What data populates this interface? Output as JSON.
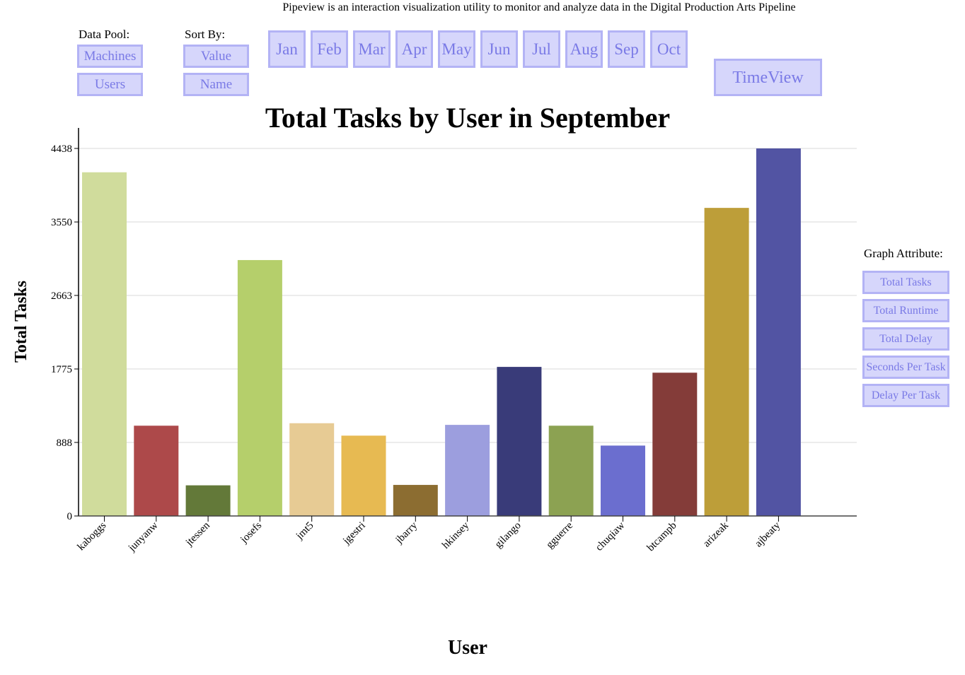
{
  "header": {
    "tagline": "Pipeview is an interaction visualization utility to monitor and analyze data in the Digital Production Arts Pipeline"
  },
  "controls": {
    "data_pool_label": "Data Pool:",
    "data_pool_options": [
      "Machines",
      "Users"
    ],
    "sort_label": "Sort By:",
    "sort_options": [
      "Value",
      "Name"
    ],
    "months": [
      "Jan",
      "Feb",
      "Mar",
      "Apr",
      "May",
      "Jun",
      "Jul",
      "Aug",
      "Sep",
      "Oct"
    ],
    "timeview_label": "TimeView",
    "graph_attribute_label": "Graph Attribute:",
    "graph_attributes": [
      "Total Tasks",
      "Total Runtime",
      "Total Delay",
      "Seconds Per Task",
      "Delay Per Task"
    ]
  },
  "colors": {
    "button_fill": "#d6d6fb",
    "button_border": "#b3b3f5",
    "button_text": "#7a7ae6"
  },
  "chart_data": {
    "type": "bar",
    "title": "Total Tasks by User in September",
    "xlabel": "User",
    "ylabel": "Total Tasks",
    "ylim": [
      0,
      4438
    ],
    "yticks": [
      0,
      888,
      1775,
      2663,
      3550,
      4438
    ],
    "grid": true,
    "categories": [
      "kaboggs",
      "junyanw",
      "jtessen",
      "josefs",
      "jmt5",
      "jgestri",
      "jbarry",
      "hkinsey",
      "gilango",
      "gguerre",
      "chuqiaw",
      "btcampb",
      "arizeak",
      "ajbeaty"
    ],
    "values": [
      4150,
      1090,
      370,
      3090,
      1120,
      970,
      375,
      1100,
      1800,
      1090,
      850,
      1730,
      3720,
      4438
    ],
    "colors": [
      "#d0dc9c",
      "#ad494a",
      "#637939",
      "#b5cf6b",
      "#e7cb94",
      "#e7ba52",
      "#8c6d31",
      "#9c9ede",
      "#393b79",
      "#8ca252",
      "#6b6ecf",
      "#843c39",
      "#bd9e39",
      "#5254a3"
    ]
  }
}
